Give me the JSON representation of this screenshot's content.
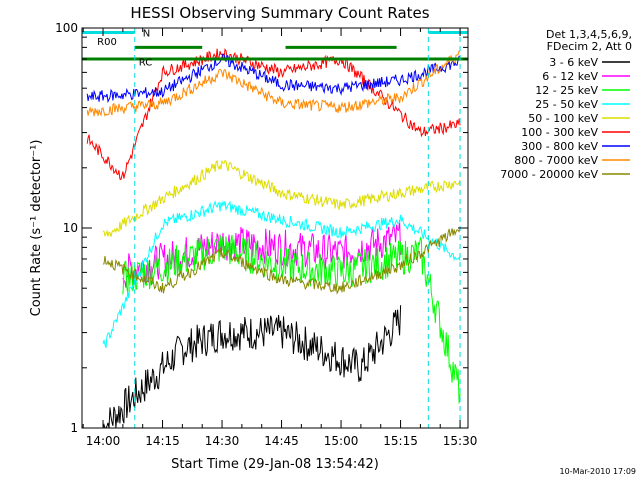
{
  "chart_data": {
    "type": "line",
    "title": "HESSI Observing Summary Count Rates",
    "xlabel": "Start Time (29-Jan-08 13:54:42)",
    "ylabel": "Count Rate (s⁻¹ detector⁻¹)",
    "y_scale": "log",
    "ylim": [
      1,
      100
    ],
    "xlim": [
      "13:54:42",
      "15:32:00"
    ],
    "x_ticks": [
      "14:00",
      "14:15",
      "14:30",
      "14:45",
      "15:00",
      "15:15",
      "15:30"
    ],
    "y_ticks": [
      "1",
      "10",
      "100"
    ],
    "legend_header": [
      "Det 1,3,4,5,6,9,",
      "FDecim 2, Att 0"
    ],
    "legend_position": "right",
    "date_stamp": "10-Mar-2010 17:09",
    "flags": [
      {
        "label": "R00",
        "color": "#00dddd"
      },
      {
        "label": "N",
        "color": "#00dddd"
      },
      {
        "label": "RC",
        "color": "#008000"
      }
    ],
    "series": [
      {
        "name": "3 - 6 keV",
        "color": "#000000",
        "approx": [
          {
            "t": "14:00",
            "v": 1.0
          },
          {
            "t": "14:20",
            "v": 2.5
          },
          {
            "t": "14:30",
            "v": 3.0
          },
          {
            "t": "14:45",
            "v": 3.0
          },
          {
            "t": "15:05",
            "v": 2.0
          },
          {
            "t": "15:15",
            "v": 3.5
          }
        ]
      },
      {
        "name": "6 - 12 keV",
        "color": "#ff00ff",
        "approx": [
          {
            "t": "14:05",
            "v": 6.0
          },
          {
            "t": "14:30",
            "v": 8.5
          },
          {
            "t": "14:45",
            "v": 8.0
          },
          {
            "t": "15:00",
            "v": 7.5
          },
          {
            "t": "15:15",
            "v": 9.0
          }
        ]
      },
      {
        "name": "12 - 25 keV",
        "color": "#00ff00",
        "approx": [
          {
            "t": "14:05",
            "v": 5.5
          },
          {
            "t": "14:30",
            "v": 8.0
          },
          {
            "t": "14:45",
            "v": 6.5
          },
          {
            "t": "15:00",
            "v": 6.0
          },
          {
            "t": "15:20",
            "v": 7.5
          },
          {
            "t": "15:30",
            "v": 1.5
          }
        ]
      },
      {
        "name": "25 - 50 keV",
        "color": "#00ffff",
        "approx": [
          {
            "t": "14:00",
            "v": 2.5
          },
          {
            "t": "14:15",
            "v": 10.5
          },
          {
            "t": "14:30",
            "v": 13.0
          },
          {
            "t": "14:45",
            "v": 11.0
          },
          {
            "t": "15:00",
            "v": 9.5
          },
          {
            "t": "15:15",
            "v": 11.0
          },
          {
            "t": "15:30",
            "v": 7.0
          }
        ]
      },
      {
        "name": "50 - 100 keV",
        "color": "#dddd00",
        "approx": [
          {
            "t": "14:00",
            "v": 9.0
          },
          {
            "t": "14:15",
            "v": 14.0
          },
          {
            "t": "14:30",
            "v": 21.0
          },
          {
            "t": "14:45",
            "v": 15.0
          },
          {
            "t": "15:00",
            "v": 13.0
          },
          {
            "t": "15:15",
            "v": 15.0
          },
          {
            "t": "15:30",
            "v": 17.0
          }
        ]
      },
      {
        "name": "100 - 300 keV",
        "color": "#ff0000",
        "approx": [
          {
            "t": "13:56",
            "v": 28.0
          },
          {
            "t": "14:05",
            "v": 18.0
          },
          {
            "t": "14:15",
            "v": 60.0
          },
          {
            "t": "14:30",
            "v": 75.0
          },
          {
            "t": "14:45",
            "v": 60.0
          },
          {
            "t": "15:00",
            "v": 70.0
          },
          {
            "t": "15:20",
            "v": 30.0
          },
          {
            "t": "15:30",
            "v": 33.0
          }
        ]
      },
      {
        "name": "300 - 800 keV",
        "color": "#0000ff",
        "approx": [
          {
            "t": "13:56",
            "v": 45.0
          },
          {
            "t": "14:15",
            "v": 48.0
          },
          {
            "t": "14:30",
            "v": 70.0
          },
          {
            "t": "14:45",
            "v": 52.0
          },
          {
            "t": "15:00",
            "v": 50.0
          },
          {
            "t": "15:15",
            "v": 55.0
          },
          {
            "t": "15:30",
            "v": 68.0
          }
        ]
      },
      {
        "name": "800 - 7000 keV",
        "color": "#ff8800",
        "approx": [
          {
            "t": "13:56",
            "v": 38.0
          },
          {
            "t": "14:15",
            "v": 42.0
          },
          {
            "t": "14:30",
            "v": 60.0
          },
          {
            "t": "14:45",
            "v": 42.0
          },
          {
            "t": "15:00",
            "v": 40.0
          },
          {
            "t": "15:15",
            "v": 45.0
          },
          {
            "t": "15:30",
            "v": 75.0
          }
        ]
      },
      {
        "name": "7000 - 20000 keV",
        "color": "#888800",
        "approx": [
          {
            "t": "14:00",
            "v": 7.0
          },
          {
            "t": "14:15",
            "v": 5.0
          },
          {
            "t": "14:30",
            "v": 7.5
          },
          {
            "t": "14:45",
            "v": 5.5
          },
          {
            "t": "15:00",
            "v": 5.0
          },
          {
            "t": "15:15",
            "v": 6.5
          },
          {
            "t": "15:30",
            "v": 10.0
          }
        ]
      }
    ]
  }
}
